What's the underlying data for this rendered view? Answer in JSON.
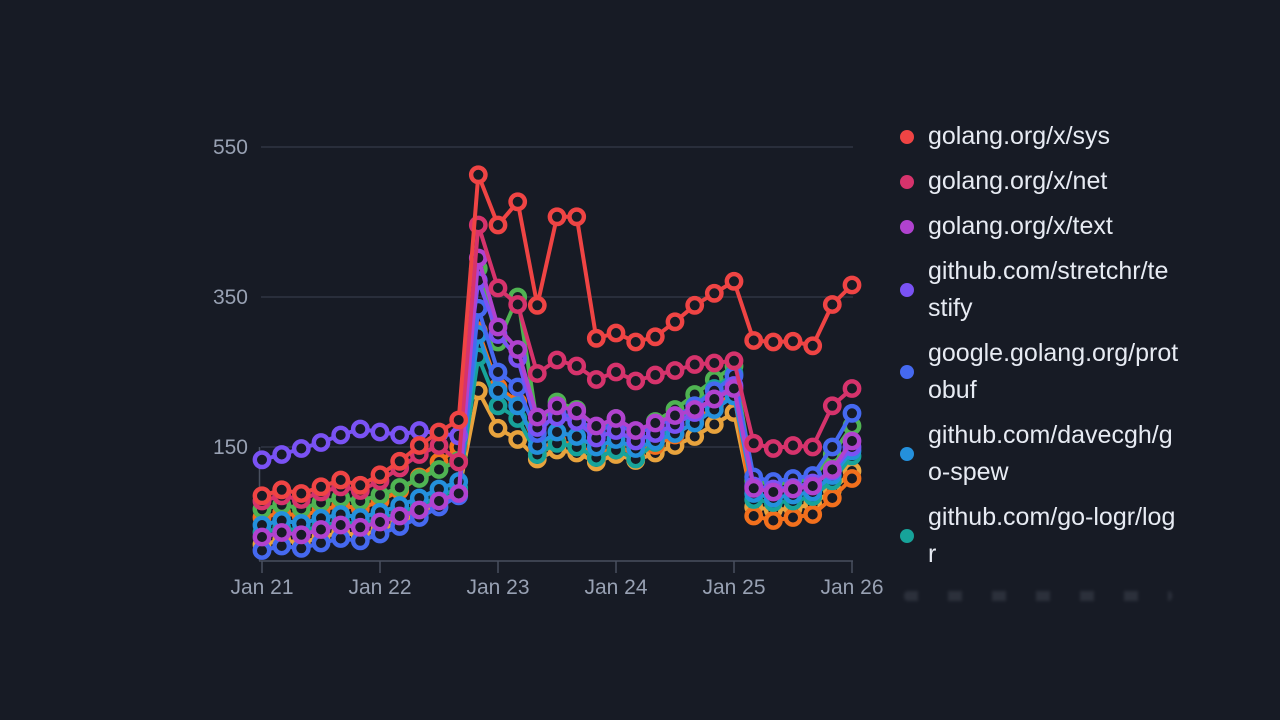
{
  "colors": {
    "background": "#171b25",
    "grid": "#343b49",
    "axis_line": "#49505f",
    "tick_label": "#98a1b3",
    "legend_text": "#e7ebf3"
  },
  "legend": {
    "position": "right",
    "items": [
      {
        "label": "golang.org/x/sys",
        "color": "#ef4444"
      },
      {
        "label": "golang.org/x/net",
        "color": "#d6336c"
      },
      {
        "label": "golang.org/x/text",
        "color": "#b042cf"
      },
      {
        "label": "github.com/stretchr/testify",
        "color": "#7a52f4"
      },
      {
        "label": "google.golang.org/protobuf",
        "color": "#4569f0"
      },
      {
        "label": "github.com/davecgh/go-spew",
        "color": "#2490dc"
      },
      {
        "label": "github.com/go-logr/logr",
        "color": "#17a39a"
      }
    ],
    "truncated_row_visible": true
  },
  "chart_data": {
    "type": "line",
    "title": "",
    "xlabel": "",
    "ylabel": "",
    "marker": "open-circle",
    "grid": "horizontal",
    "legend_position": "right",
    "x_tick_labels": [
      "Jan 21",
      "Jan 22",
      "Jan 23",
      "Jan 24",
      "Jan 25",
      "Jan 26"
    ],
    "y_ticks": [
      550,
      350,
      150
    ],
    "ylim": [
      0,
      600
    ],
    "points_per_day": 6,
    "x_unit": "4-hour intervals from Jan 21 to Jan 26",
    "series": [
      {
        "name": "golang.org/x/sys",
        "color": "#ef4444",
        "values": [
          85,
          93,
          88,
          97,
          106,
          99,
          113,
          131,
          152,
          170,
          186,
          513,
          446,
          477,
          339,
          457,
          457,
          295,
          302,
          290,
          297,
          317,
          339,
          355,
          371,
          292,
          290,
          291,
          285,
          340,
          366
        ]
      },
      {
        "name": "golang.org/x/net",
        "color": "#d6336c",
        "values": [
          78,
          85,
          80,
          90,
          97,
          92,
          105,
          122,
          140,
          152,
          130,
          446,
          362,
          340,
          248,
          266,
          258,
          240,
          250,
          238,
          246,
          252,
          260,
          262,
          265,
          155,
          148,
          152,
          150,
          205,
          228
        ]
      },
      {
        "name": "golang.org/x/text",
        "color": "#b042cf",
        "values": [
          30,
          36,
          33,
          40,
          46,
          43,
          50,
          58,
          66,
          78,
          88,
          402,
          310,
          280,
          190,
          205,
          198,
          178,
          188,
          172,
          182,
          192,
          200,
          214,
          228,
          95,
          90,
          94,
          98,
          120,
          158
        ]
      },
      {
        "name": "github.com/stretchr/testify",
        "color": "#7a52f4",
        "values": [
          133,
          140,
          148,
          156,
          166,
          174,
          170,
          166,
          172,
          168,
          165,
          372,
          300,
          268,
          176,
          190,
          184,
          162,
          172,
          158,
          168,
          180,
          196,
          214,
          232,
          98,
          94,
          96,
          102,
          118,
          150
        ]
      },
      {
        "name": "google.golang.org/protobuf",
        "color": "#4569f0",
        "values": [
          12,
          18,
          15,
          22,
          28,
          25,
          34,
          44,
          56,
          70,
          85,
          335,
          250,
          230,
          168,
          196,
          188,
          170,
          182,
          168,
          178,
          190,
          205,
          225,
          245,
          110,
          104,
          108,
          112,
          150,
          195
        ]
      },
      {
        "name": "github.com/davecgh/go-spew",
        "color": "#2490dc",
        "values": [
          46,
          52,
          48,
          55,
          60,
          56,
          63,
          72,
          82,
          94,
          104,
          300,
          225,
          205,
          152,
          170,
          164,
          150,
          160,
          148,
          158,
          168,
          182,
          200,
          218,
          88,
          82,
          86,
          90,
          112,
          145
        ]
      },
      {
        "name": "github.com/go-logr/logr",
        "color": "#17a39a",
        "values": [
          36,
          42,
          38,
          45,
          50,
          47,
          54,
          62,
          72,
          84,
          95,
          270,
          205,
          188,
          140,
          155,
          150,
          136,
          146,
          134,
          156,
          180,
          205,
          228,
          248,
          80,
          76,
          78,
          84,
          105,
          138
        ]
      },
      {
        "name": "",
        "color": "#4fb352",
        "values": [
          67,
          73,
          68,
          76,
          82,
          78,
          86,
          96,
          108,
          120,
          132,
          388,
          290,
          350,
          180,
          210,
          200,
          176,
          188,
          170,
          184,
          200,
          220,
          240,
          258,
          105,
          100,
          104,
          108,
          140,
          178
        ]
      },
      {
        "name": "",
        "color": "#f2701d",
        "values": [
          56,
          62,
          58,
          66,
          72,
          68,
          78,
          92,
          110,
          130,
          150,
          305,
          230,
          210,
          146,
          158,
          152,
          140,
          150,
          142,
          152,
          166,
          184,
          204,
          222,
          58,
          52,
          56,
          60,
          82,
          108
        ]
      },
      {
        "name": "",
        "color": "#e8a33d",
        "values": [
          20,
          26,
          22,
          30,
          36,
          32,
          40,
          50,
          62,
          76,
          90,
          225,
          175,
          160,
          134,
          146,
          142,
          130,
          140,
          132,
          142,
          152,
          164,
          180,
          196,
          70,
          66,
          68,
          74,
          92,
          118
        ]
      }
    ]
  }
}
